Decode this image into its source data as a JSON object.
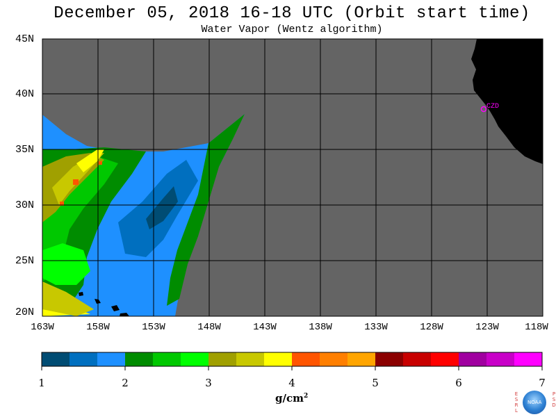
{
  "header": {
    "title": "December 05, 2018  16-18 UTC  (Orbit start time)",
    "subtitle": "Water Vapor (Wentz algorithm)"
  },
  "map": {
    "lat_labels": [
      "45N",
      "40N",
      "35N",
      "30N",
      "25N",
      "20N"
    ],
    "lon_labels": [
      "163W",
      "158W",
      "153W",
      "148W",
      "143W",
      "138W",
      "133W",
      "128W",
      "123W",
      "118W"
    ],
    "station_label": "CZD",
    "colors": {
      "background_no_data": "#646464",
      "land": "#000000",
      "station": "#ff00ff",
      "grid": "#000000"
    }
  },
  "colorbar": {
    "tick_labels": [
      "1",
      "2",
      "3",
      "4",
      "5",
      "6",
      "7"
    ],
    "unit_base": "g/cm",
    "unit_exp": "2",
    "colors": [
      "#004c73",
      "#006fbf",
      "#1e90ff",
      "#008c00",
      "#00c800",
      "#00ff00",
      "#a0a000",
      "#c8c800",
      "#ffff00",
      "#ff5500",
      "#ff7f00",
      "#ffa500",
      "#8b0000",
      "#c80000",
      "#ff0000",
      "#a000a0",
      "#c800c8",
      "#ff00ff"
    ]
  },
  "logos": {
    "center_text": "NOAA",
    "left_vertical": "ESRL",
    "right_vertical": "PSD"
  }
}
